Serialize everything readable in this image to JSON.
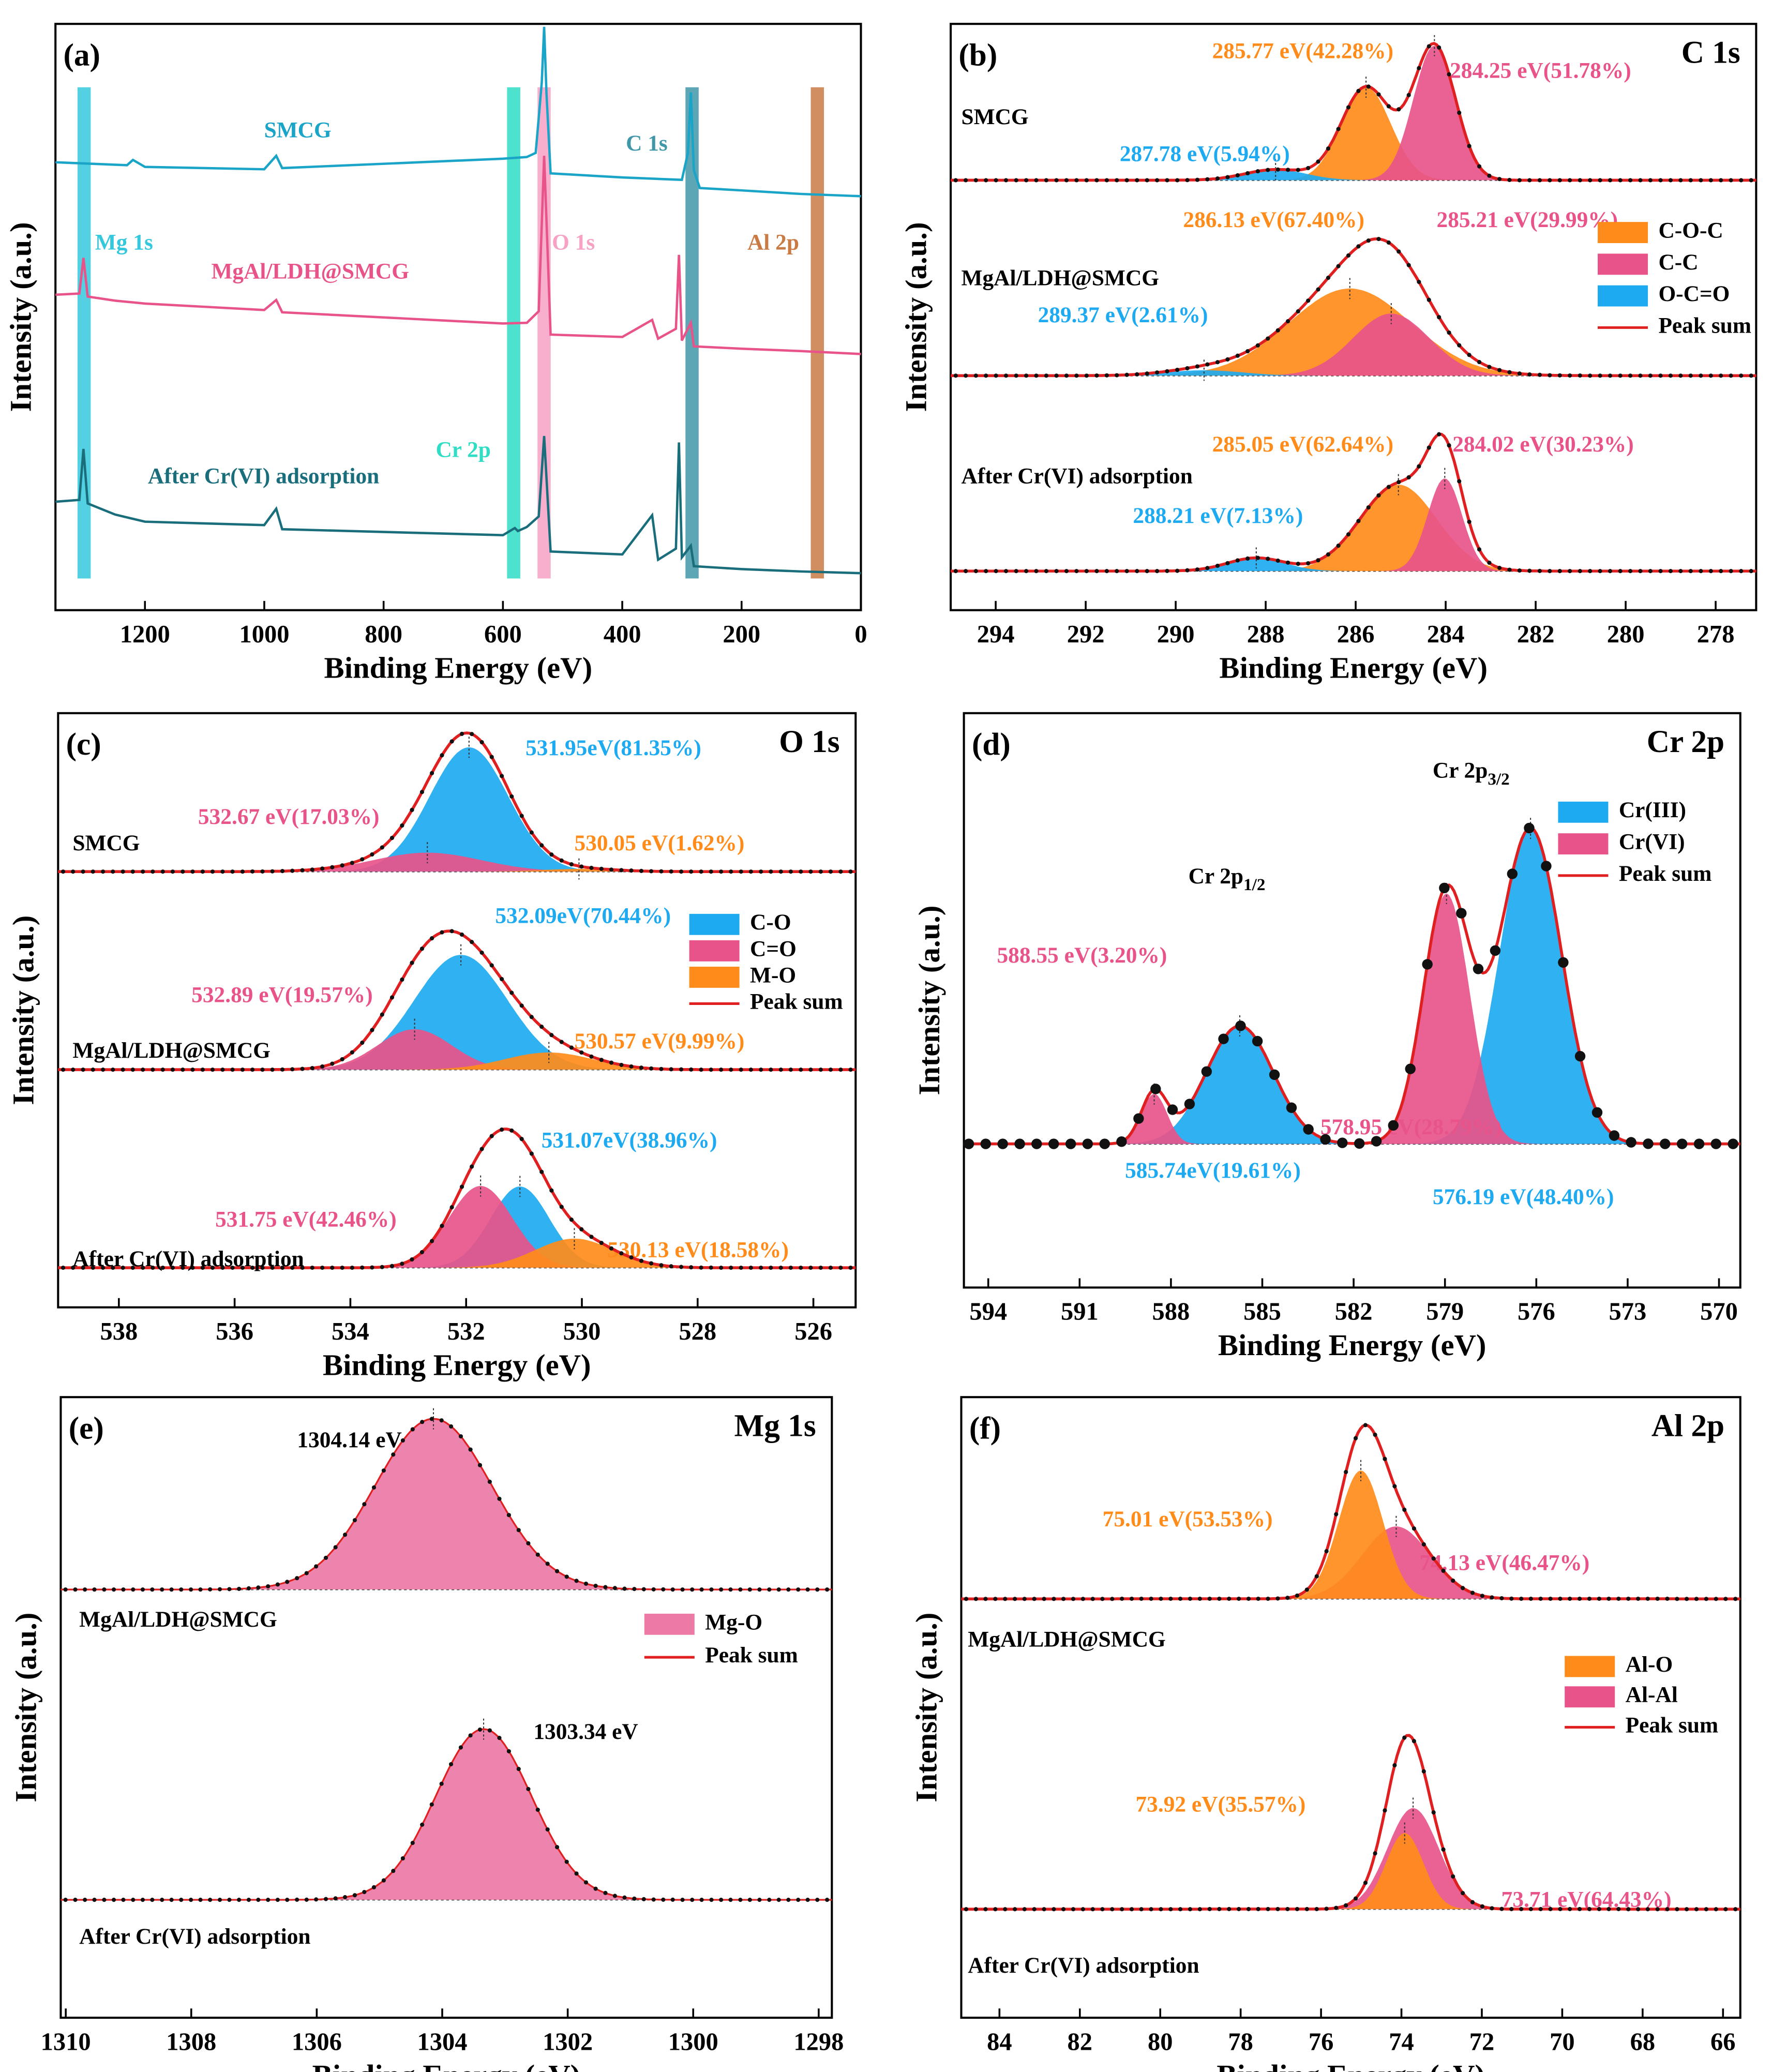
{
  "chart_data": [
    {
      "type": "line",
      "panel": "(a)",
      "xlabel": "Binding Energy (eV)",
      "ylabel": "Intensity (a.u.)",
      "xlim": [
        1350,
        0
      ],
      "xticks": [
        1200,
        1000,
        800,
        600,
        400,
        200,
        0
      ],
      "ylim": [
        0,
        100
      ],
      "series": [
        {
          "name": "SMCG",
          "color": "#1aa4c8",
          "x": [
            1350,
            1230,
            1220,
            1200,
            1000,
            980,
            970,
            600,
            560,
            545,
            535,
            531,
            527,
            520,
            400,
            300,
            290,
            285,
            280,
            270,
            200,
            100,
            0
          ],
          "values": [
            76.4,
            75.9,
            76.8,
            75.6,
            75.2,
            77.5,
            75.4,
            77,
            77.3,
            78,
            90,
            99.5,
            88,
            74.5,
            73.8,
            73.4,
            78,
            88.3,
            75,
            72,
            71.6,
            71,
            70.6
          ]
        },
        {
          "name": "MgAl/LDH@SMCG",
          "color": "#e8548a",
          "x": [
            1350,
            1310,
            1303,
            1296,
            1250,
            1200,
            1000,
            980,
            970,
            600,
            560,
            540,
            531,
            520,
            400,
            350,
            340,
            310,
            305,
            300,
            285,
            280,
            200,
            100,
            0
          ],
          "values": [
            53.8,
            54,
            60.1,
            53.5,
            52.8,
            52.3,
            51.2,
            52.9,
            50.8,
            48.9,
            49,
            51,
            77.5,
            47,
            46.6,
            49.5,
            46.3,
            48,
            60.6,
            46,
            49,
            45,
            44.6,
            44.2,
            43.7
          ]
        },
        {
          "name": "After Cr(VI) adsorption",
          "color": "#1a6e7c",
          "x": [
            1350,
            1310,
            1303,
            1296,
            1250,
            1200,
            1000,
            980,
            970,
            600,
            580,
            575,
            560,
            540,
            531,
            520,
            400,
            350,
            340,
            310,
            305,
            300,
            285,
            280,
            200,
            100,
            0
          ],
          "values": [
            18.5,
            18.8,
            27.5,
            18.2,
            16.3,
            15.1,
            14.5,
            17.3,
            13.8,
            12.8,
            14,
            13.5,
            14.2,
            16,
            29.7,
            10,
            9.5,
            16.2,
            8.6,
            10.5,
            28.6,
            9,
            11,
            7.5,
            7,
            6.6,
            6.3
          ]
        }
      ],
      "bands": [
        {
          "label": "Mg 1s",
          "center": 1302,
          "color": "#35c8dc"
        },
        {
          "label": "Cr 2p",
          "center": 582,
          "color": "#2fdcc4"
        },
        {
          "label": "O 1s",
          "center": 531,
          "color": "#f7a1c4"
        },
        {
          "label": "C 1s",
          "center": 283,
          "color": "#3f97a8"
        },
        {
          "label": "Al 2p",
          "center": 73,
          "color": "#c97a45"
        }
      ]
    },
    {
      "type": "peak-fit",
      "panel": "(b)",
      "title": "C 1s",
      "xlabel": "Binding Energy (eV)",
      "ylabel": "Intensity (a.u.)",
      "xlim": [
        295,
        277.1
      ],
      "xticks": [
        294,
        292,
        290,
        288,
        286,
        284,
        282,
        280,
        278
      ],
      "legend": [
        {
          "name": "C-O-C",
          "color": "#ff8c1a"
        },
        {
          "name": "C-C",
          "color": "#e8548a"
        },
        {
          "name": "O-C=O",
          "color": "#1eaaf0"
        },
        {
          "name": "Peak sum",
          "color": "#e02020"
        }
      ],
      "spectra": [
        {
          "name": "SMCG",
          "components": [
            {
              "name": "C-O-C",
              "center": 285.77,
              "percent": 42.28,
              "fwhm": 1.3,
              "label": "285.77 eV(42.28%)"
            },
            {
              "name": "C-C",
              "center": 284.25,
              "percent": 51.78,
              "fwhm": 1.1,
              "label": "284.25 eV(51.78%)"
            },
            {
              "name": "O-C=O",
              "center": 287.78,
              "percent": 5.94,
              "fwhm": 1.6,
              "label": "287.78 eV(5.94%)"
            }
          ]
        },
        {
          "name": "MgAl/LDH@SMCG",
          "components": [
            {
              "name": "C-O-C",
              "center": 286.13,
              "percent": 67.4,
              "fwhm": 3.2,
              "label": "286.13 eV(67.40%)"
            },
            {
              "name": "C-C",
              "center": 285.21,
              "percent": 29.99,
              "fwhm": 2.0,
              "label": "285.21 eV(29.99%)"
            },
            {
              "name": "O-C=O",
              "center": 289.37,
              "percent": 2.61,
              "fwhm": 2.0,
              "label": "289.37 eV(2.61%)"
            }
          ]
        },
        {
          "name": "After Cr(VI) adsorption",
          "components": [
            {
              "name": "C-O-C",
              "center": 285.05,
              "percent": 62.64,
              "fwhm": 2.0,
              "label": "285.05 eV(62.64%)"
            },
            {
              "name": "C-C",
              "center": 284.02,
              "percent": 30.23,
              "fwhm": 0.9,
              "label": "284.02 eV(30.23%)"
            },
            {
              "name": "O-C=O",
              "center": 288.21,
              "percent": 7.13,
              "fwhm": 1.5,
              "label": "288.21 eV(7.13%)"
            }
          ]
        }
      ]
    },
    {
      "type": "peak-fit",
      "panel": "(c)",
      "title": "O 1s",
      "xlabel": "Binding Energy (eV)",
      "ylabel": "Intensity (a.u.)",
      "xlim": [
        539.05,
        525.27
      ],
      "xticks": [
        538,
        536,
        534,
        532,
        530,
        528,
        526
      ],
      "legend": [
        {
          "name": "C-O",
          "color": "#1eaaf0"
        },
        {
          "name": "C=O",
          "color": "#e8548a"
        },
        {
          "name": "M-O",
          "color": "#ff8c1a"
        },
        {
          "name": "Peak sum",
          "color": "#e02020"
        }
      ],
      "spectra": [
        {
          "name": "SMCG",
          "components": [
            {
              "name": "C-O",
              "center": 531.95,
              "percent": 81.35,
              "fwhm": 1.6,
              "label": "531.95eV(81.35%)"
            },
            {
              "name": "C=O",
              "center": 532.67,
              "percent": 17.03,
              "fwhm": 2.2,
              "label": "532.67 eV(17.03%)"
            },
            {
              "name": "M-O",
              "center": 530.05,
              "percent": 1.62,
              "fwhm": 1.5,
              "label": "530.05 eV(1.62%)"
            }
          ]
        },
        {
          "name": "MgAl/LDH@SMCG",
          "components": [
            {
              "name": "C-O",
              "center": 532.09,
              "percent": 70.44,
              "fwhm": 1.9,
              "label": "532.09eV(70.44%)"
            },
            {
              "name": "C=O",
              "center": 532.89,
              "percent": 19.57,
              "fwhm": 1.5,
              "label": "532.89 eV(19.57%)"
            },
            {
              "name": "M-O",
              "center": 530.57,
              "percent": 9.99,
              "fwhm": 1.8,
              "label": "530.57 eV(9.99%)"
            }
          ]
        },
        {
          "name": "After Cr(VI) adsorption",
          "components": [
            {
              "name": "C-O",
              "center": 531.07,
              "percent": 38.96,
              "fwhm": 1.2,
              "label": "531.07eV(38.96%)"
            },
            {
              "name": "C=O",
              "center": 531.75,
              "percent": 42.46,
              "fwhm": 1.3,
              "label": "531.75 eV(42.46%)"
            },
            {
              "name": "M-O",
              "center": 530.13,
              "percent": 18.58,
              "fwhm": 1.6,
              "label": "530.13 eV(18.58%)"
            }
          ]
        }
      ]
    },
    {
      "type": "peak-fit",
      "panel": "(d)",
      "title": "Cr 2p",
      "xlabel": "Binding Energy (eV)",
      "ylabel": "Intensity (a.u.)",
      "xlim": [
        594.8,
        569.3
      ],
      "xticks": [
        594,
        591,
        588,
        585,
        582,
        579,
        576,
        573,
        570
      ],
      "legend": [
        {
          "name": "Cr(III)",
          "color": "#1eaaf0"
        },
        {
          "name": "Cr(VI)",
          "color": "#e8548a"
        },
        {
          "name": "Peak sum",
          "color": "#e02020"
        }
      ],
      "annotations": [
        {
          "text": "Cr 2p",
          "sub": "1/2"
        },
        {
          "text": "Cr 2p",
          "sub": "3/2"
        }
      ],
      "spectra": [
        {
          "components": [
            {
              "name": "Cr(III)",
              "center": 585.74,
              "percent": 19.61,
              "fwhm": 2.6,
              "label": "585.74eV(19.61%)"
            },
            {
              "name": "Cr(III)",
              "center": 576.19,
              "percent": 48.4,
              "fwhm": 2.4,
              "label": "576.19 eV(48.40%)"
            },
            {
              "name": "Cr(VI)",
              "center": 588.55,
              "percent": 3.2,
              "fwhm": 1.0,
              "label": "588.55 eV(3.20%)"
            },
            {
              "name": "Cr(VI)",
              "center": 578.95,
              "percent": 28.79,
              "fwhm": 1.8,
              "label": "578.95 eV(28.79%)"
            }
          ]
        }
      ]
    },
    {
      "type": "peak-fit",
      "panel": "(e)",
      "title": "Mg 1s",
      "xlabel": "Binding Energy (eV)",
      "ylabel": "Intensity (a.u.)",
      "xlim": [
        1310.08,
        1297.79
      ],
      "xticks": [
        1310,
        1308,
        1306,
        1304,
        1302,
        1300,
        1298
      ],
      "legend": [
        {
          "name": "Mg-O",
          "color": "#ec79a6"
        },
        {
          "name": "Peak sum",
          "color": "#e02020"
        }
      ],
      "spectra": [
        {
          "name": "MgAl/LDH@SMCG",
          "components": [
            {
              "name": "Mg-O",
              "center": 1304.14,
              "fwhm": 2.2,
              "label": "1304.14 eV"
            }
          ]
        },
        {
          "name": "After Cr(VI) adsorption",
          "components": [
            {
              "name": "Mg-O",
              "center": 1303.34,
              "fwhm": 1.8,
              "label": "1303.34 eV"
            }
          ]
        }
      ]
    },
    {
      "type": "peak-fit",
      "panel": "(f)",
      "title": "Al 2p",
      "xlabel": "Binding Energy (eV)",
      "ylabel": "Intensity (a.u.)",
      "xlim": [
        84.95,
        65.57
      ],
      "xticks": [
        84,
        82,
        80,
        78,
        76,
        74,
        72,
        70,
        68,
        66
      ],
      "legend": [
        {
          "name": "Al-O",
          "color": "#ff8c1a"
        },
        {
          "name": "Al-Al",
          "color": "#e8548a"
        },
        {
          "name": "Peak sum",
          "color": "#e02020"
        }
      ],
      "spectra": [
        {
          "name": "MgAl/LDH@SMCG",
          "components": [
            {
              "name": "Al-Al",
              "center": 74.13,
              "percent": 46.47,
              "fwhm": 2.0,
              "label": "74.13 eV(46.47%)"
            },
            {
              "name": "Al-O",
              "center": 75.01,
              "percent": 53.53,
              "fwhm": 1.3,
              "label": "75.01 eV(53.53%)"
            }
          ]
        },
        {
          "name": "After Cr(VI) adsorption",
          "components": [
            {
              "name": "Al-Al",
              "center": 73.71,
              "percent": 64.43,
              "fwhm": 1.5,
              "label": "73.71 eV(64.43%)"
            },
            {
              "name": "Al-O",
              "center": 73.92,
              "percent": 35.57,
              "fwhm": 1.1,
              "label": "73.92 eV(35.57%)"
            }
          ]
        }
      ]
    }
  ]
}
